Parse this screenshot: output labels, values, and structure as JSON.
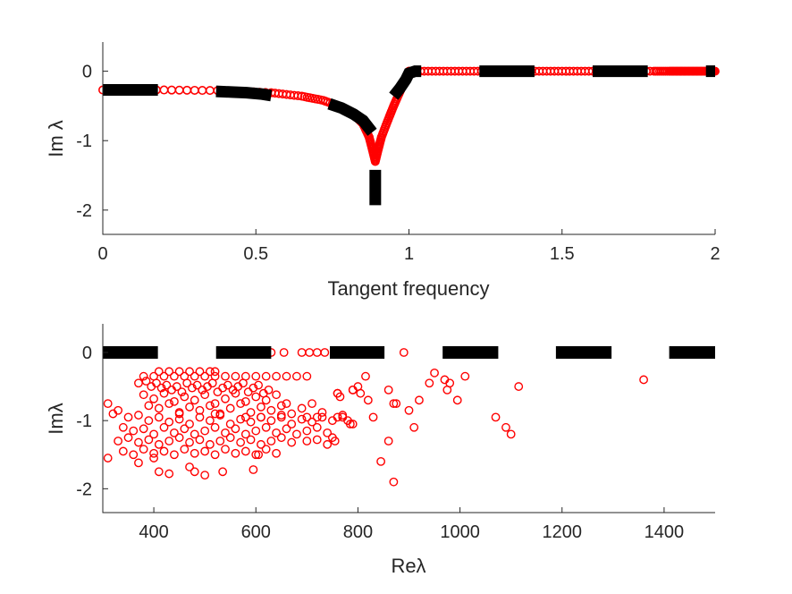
{
  "chart_data": [
    {
      "type": "scatter",
      "xlabel": "Tangent frequency",
      "ylabel": "Im λ",
      "xlim": [
        0,
        2
      ],
      "ylim": [
        -2.35,
        0.42
      ],
      "xticks": [
        0,
        0.5,
        1,
        1.5,
        2
      ],
      "xtick_labels": [
        "0",
        "0.5",
        "1",
        "1.5",
        "2"
      ],
      "yticks": [
        0,
        -1,
        -2
      ],
      "ytick_labels": [
        "0",
        "-1",
        "-2"
      ],
      "grid": false,
      "series": [
        {
          "marker": "circle",
          "color": "#ff0000",
          "description": "red circle markers, densely sampled along the curve",
          "segments": [
            {
              "x": [
                0,
                0.2,
                0.4,
                0.55,
                0.65,
                0.72,
                0.78,
                0.82,
                0.85,
                0.87,
                0.88,
                0.89,
                0.9,
                0.91,
                0.93,
                0.95,
                0.97,
                0.99,
                1.0
              ],
              "y": [
                -0.27,
                -0.27,
                -0.28,
                -0.31,
                -0.36,
                -0.42,
                -0.52,
                -0.62,
                -0.76,
                -0.95,
                -1.12,
                -1.3,
                -1.12,
                -0.95,
                -0.72,
                -0.5,
                -0.3,
                -0.1,
                0.0
              ]
            },
            {
              "x": [
                1.0,
                1.1,
                1.2,
                1.3,
                1.4,
                1.5,
                1.6,
                1.7,
                1.8,
                1.85,
                1.88,
                1.91,
                1.94,
                1.97,
                2.0
              ],
              "y": [
                0,
                0,
                0,
                0,
                0,
                0,
                0,
                0,
                0,
                0,
                0,
                0,
                0,
                0,
                0
              ]
            }
          ]
        },
        {
          "marker": "thick-dash",
          "color": "#000000",
          "description": "black dashed thick line over the curve",
          "segments": [
            {
              "x": [
                0.0,
                0.02,
                0.06,
                0.1,
                0.14,
                0.18
              ],
              "y": [
                -0.27,
                -0.27,
                -0.27,
                -0.27,
                -0.27,
                -0.27
              ]
            },
            {
              "x": [
                0.37,
                0.42,
                0.47,
                0.52,
                0.55
              ],
              "y": [
                -0.29,
                -0.3,
                -0.31,
                -0.33,
                -0.35
              ]
            },
            {
              "x": [
                0.74,
                0.78,
                0.82,
                0.85,
                0.88
              ],
              "y": [
                -0.47,
                -0.53,
                -0.62,
                -0.71,
                -0.88
              ]
            },
            {
              "x": [
                0.89,
                0.89,
                0.89,
                0.89
              ],
              "y": [
                -1.42,
                -1.6,
                -1.78,
                -1.93
              ]
            },
            {
              "x": [
                0.95,
                0.97,
                0.99,
                1.0,
                1.02,
                1.04
              ],
              "y": [
                -0.36,
                -0.25,
                -0.12,
                -0.03,
                0.0,
                0.0
              ]
            },
            {
              "x": [
                1.23,
                1.3,
                1.36,
                1.41
              ],
              "y": [
                0,
                0,
                0,
                0
              ]
            },
            {
              "x": [
                1.6,
                1.66,
                1.72,
                1.78
              ],
              "y": [
                0,
                0,
                0,
                0
              ]
            },
            {
              "x": [
                1.97,
                1.985,
                2.0
              ],
              "y": [
                0,
                0,
                0
              ]
            }
          ]
        }
      ]
    },
    {
      "type": "scatter",
      "xlabel": "Reλ",
      "ylabel": "Imλ",
      "xlim": [
        300,
        1500
      ],
      "ylim": [
        -2.35,
        0.42
      ],
      "xticks": [
        400,
        600,
        800,
        1000,
        1200,
        1400
      ],
      "xtick_labels": [
        "400",
        "600",
        "800",
        "1000",
        "1200",
        "1400"
      ],
      "yticks": [
        0,
        -1,
        -2
      ],
      "ytick_labels": [
        "0",
        "-1",
        "-2"
      ],
      "grid": false,
      "series": [
        {
          "marker": "dash",
          "color": "#000000",
          "description": "black dashed line at Imλ = 0",
          "segments": [
            {
              "x": [
                300,
                408
              ],
              "y": [
                0,
                0
              ]
            },
            {
              "x": [
                522,
                630
              ],
              "y": [
                0,
                0
              ]
            },
            {
              "x": [
                745,
                852
              ],
              "y": [
                0,
                0
              ]
            },
            {
              "x": [
                966,
                1075
              ],
              "y": [
                0,
                0
              ]
            },
            {
              "x": [
                1188,
                1297
              ],
              "y": [
                0,
                0
              ]
            },
            {
              "x": [
                1410,
                1500
              ],
              "y": [
                0,
                0
              ]
            }
          ]
        },
        {
          "marker": "circle",
          "color": "#ff0000",
          "description": "red circle markers",
          "x": [
            410,
            430,
            450,
            470,
            490,
            510,
            520,
            380,
            400,
            420,
            440,
            460,
            480,
            500,
            520,
            540,
            560,
            580,
            600,
            620,
            640,
            660,
            680,
            700,
            370,
            385,
            395,
            405,
            415,
            425,
            435,
            445,
            455,
            465,
            475,
            485,
            495,
            505,
            515,
            525,
            535,
            545,
            555,
            565,
            575,
            585,
            595,
            605,
            615,
            625,
            380,
            400,
            420,
            440,
            460,
            480,
            500,
            520,
            540,
            560,
            580,
            600,
            620,
            640,
            660,
            390,
            410,
            430,
            450,
            470,
            490,
            510,
            530,
            550,
            570,
            590,
            610,
            630,
            650,
            670,
            690,
            710,
            730,
            350,
            370,
            390,
            410,
            430,
            450,
            470,
            490,
            510,
            530,
            550,
            570,
            590,
            610,
            630,
            650,
            670,
            690,
            710,
            730,
            750,
            770,
            790,
            310,
            320,
            330,
            340,
            360,
            380,
            400,
            420,
            440,
            460,
            480,
            500,
            520,
            540,
            560,
            580,
            600,
            620,
            640,
            660,
            680,
            700,
            720,
            740,
            330,
            350,
            370,
            390,
            410,
            430,
            450,
            470,
            490,
            510,
            530,
            550,
            570,
            590,
            610,
            630,
            650,
            670,
            700,
            720,
            740,
            340,
            360,
            380,
            400,
            420,
            440,
            460,
            480,
            500,
            520,
            540,
            560,
            580,
            600,
            620,
            640,
            310,
            370,
            400,
            410,
            430,
            470,
            480,
            500,
            535,
            595,
            605,
            630,
            655,
            690,
            705,
            720,
            735,
            760,
            765,
            790,
            800,
            815,
            820,
            860,
            870,
            875,
            890,
            900,
            910,
            920,
            940,
            950,
            970,
            975,
            980,
            995,
            1010,
            1030,
            1070,
            1090,
            1100,
            1115,
            1360,
            845,
            860,
            870,
            750,
            755,
            760,
            780,
            785,
            790,
            805,
            450,
            520,
            580,
            610,
            650,
            700,
            720,
            760,
            770,
            830
          ],
          "y": [
            -0.28,
            -0.28,
            -0.28,
            -0.28,
            -0.28,
            -0.28,
            -0.28,
            -0.35,
            -0.35,
            -0.35,
            -0.35,
            -0.35,
            -0.35,
            -0.35,
            -0.35,
            -0.35,
            -0.35,
            -0.35,
            -0.35,
            -0.35,
            -0.35,
            -0.35,
            -0.35,
            -0.35,
            -0.45,
            -0.42,
            -0.5,
            -0.45,
            -0.52,
            -0.48,
            -0.55,
            -0.5,
            -0.58,
            -0.45,
            -0.52,
            -0.48,
            -0.55,
            -0.5,
            -0.45,
            -0.58,
            -0.52,
            -0.48,
            -0.55,
            -0.5,
            -0.45,
            -0.58,
            -0.52,
            -0.48,
            -0.6,
            -0.55,
            -0.62,
            -0.68,
            -0.6,
            -0.72,
            -0.65,
            -0.7,
            -0.62,
            -0.75,
            -0.68,
            -0.6,
            -0.72,
            -0.65,
            -0.7,
            -0.62,
            -0.75,
            -0.78,
            -0.82,
            -0.75,
            -0.88,
            -0.8,
            -0.85,
            -0.78,
            -0.9,
            -0.82,
            -0.75,
            -0.88,
            -0.8,
            -0.85,
            -0.78,
            -0.9,
            -0.82,
            -0.75,
            -0.88,
            -0.95,
            -0.92,
            -1.0,
            -0.95,
            -1.02,
            -0.98,
            -1.05,
            -0.95,
            -1.0,
            -0.92,
            -1.05,
            -0.98,
            -1.02,
            -0.95,
            -1.0,
            -0.92,
            -1.05,
            -0.98,
            -1.02,
            -0.95,
            -1.0,
            -0.92,
            -1.05,
            -0.75,
            -0.9,
            -0.85,
            -1.1,
            -1.15,
            -1.12,
            -1.2,
            -1.1,
            -1.18,
            -1.12,
            -1.2,
            -1.15,
            -1.1,
            -1.18,
            -1.12,
            -1.2,
            -1.15,
            -1.1,
            -1.18,
            -1.12,
            -1.2,
            -1.15,
            -1.1,
            -1.18,
            -1.3,
            -1.25,
            -1.32,
            -1.28,
            -1.35,
            -1.3,
            -1.25,
            -1.32,
            -1.28,
            -1.35,
            -1.3,
            -1.25,
            -1.32,
            -1.28,
            -1.35,
            -1.3,
            -1.25,
            -1.32,
            -1.3,
            -1.28,
            -1.35,
            -1.45,
            -1.5,
            -1.42,
            -1.48,
            -1.45,
            -1.5,
            -1.42,
            -1.48,
            -1.45,
            -1.5,
            -1.42,
            -1.48,
            -1.45,
            -1.5,
            -1.42,
            -1.48,
            -1.55,
            -1.62,
            -1.55,
            -1.75,
            -1.78,
            -1.68,
            -1.75,
            -1.8,
            -1.75,
            -1.72,
            -1.5,
            0.0,
            0.0,
            0.0,
            0.0,
            0.0,
            0.0,
            -0.6,
            -0.65,
            -0.55,
            -0.5,
            -0.35,
            -0.7,
            -0.55,
            -0.75,
            -0.75,
            0.0,
            -0.85,
            -1.1,
            -0.7,
            -0.45,
            -0.3,
            -0.4,
            -0.55,
            -0.45,
            -0.7,
            -0.35,
            0.0,
            -0.95,
            -1.1,
            -1.2,
            -0.5,
            -0.4,
            -1.6,
            -1.3,
            -1.9,
            -1.25,
            -1.3,
            -0.6,
            -1.0,
            -1.05,
            -0.55,
            -0.6,
            -0.9,
            -0.9,
            -0.95,
            -0.95,
            -0.95,
            -0.95,
            -0.95,
            -0.95,
            -0.95,
            -0.95
          ]
        }
      ]
    }
  ]
}
